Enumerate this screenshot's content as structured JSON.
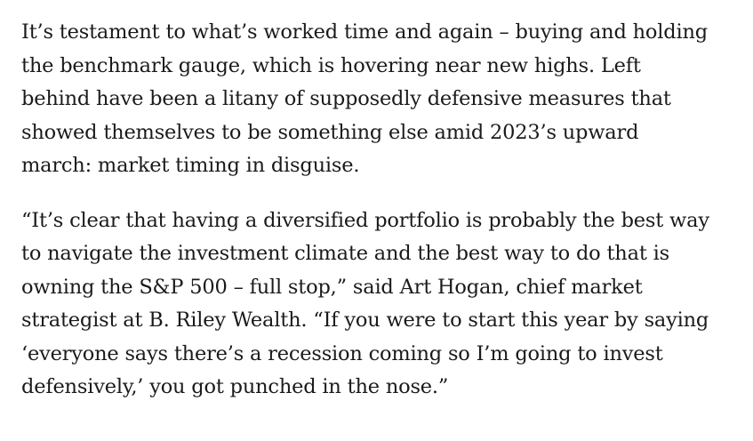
{
  "article": {
    "paragraphs": [
      {
        "lines": [
          "It’s testament to what’s worked time and again – buying and holding",
          "the benchmark gauge, which is hovering near new highs. Left",
          "behind have been a litany of supposedly defensive measures that",
          "showed themselves to be something else amid 2023’s upward",
          "march: market timing in disguise."
        ]
      },
      {
        "lines": [
          "“It’s clear that having a diversified portfolio is probably the best way",
          "to navigate the investment climate and the best way to do that is",
          "owning the S&P 500 – full stop,” said Art Hogan, chief market",
          "strategist at B. Riley Wealth. “If you were to start this year by saying",
          "‘everyone says there’s a recession coming so I’m going to invest",
          "defensively,’ you got punched in the nose.”"
        ]
      }
    ]
  }
}
